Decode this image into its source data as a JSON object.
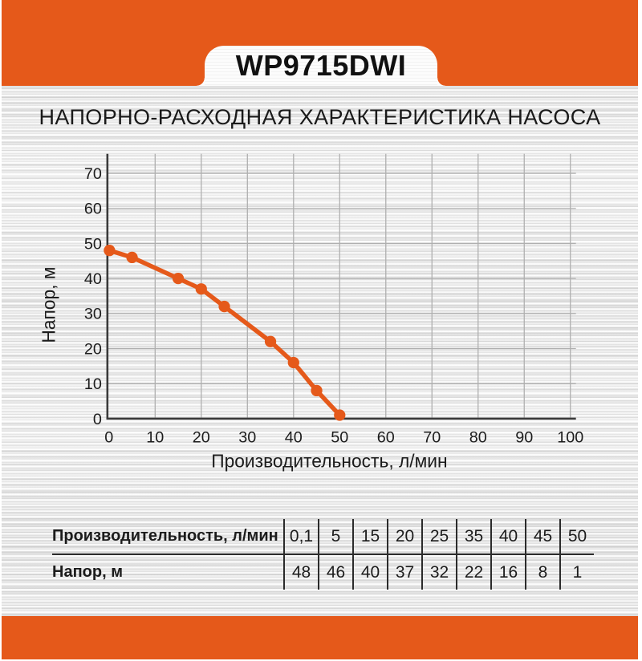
{
  "header": {
    "model": "WP9715DWI"
  },
  "heading": "НАПОРНО-РАСХОДНАЯ ХАРАКТЕРИСТИКА НАСОСА",
  "colors": {
    "accent": "#E5591A",
    "grid": "#AFAFAF",
    "axis": "#3A3A3A",
    "text": "#1C1C1C",
    "table_line": "#2B2B2B"
  },
  "chart_data": {
    "type": "line",
    "title": "",
    "x": [
      0.1,
      5,
      15,
      20,
      25,
      35,
      40,
      45,
      50
    ],
    "y": [
      48,
      46,
      40,
      37,
      32,
      22,
      16,
      8,
      1
    ],
    "xlabel": "Производительность, л/мин",
    "ylabel": "Напор, м",
    "xlim": [
      0,
      100
    ],
    "ylim": [
      0,
      70
    ],
    "xticks": [
      0,
      10,
      20,
      30,
      40,
      50,
      60,
      70,
      80,
      90,
      100
    ],
    "yticks": [
      0,
      10,
      20,
      30,
      40,
      50,
      60,
      70
    ],
    "grid": true,
    "legend": false,
    "marker": "circle",
    "series_color": "#E5591A"
  },
  "table": {
    "rows": [
      {
        "label": "Производительность, л/мин",
        "values": [
          "0,1",
          "5",
          "15",
          "20",
          "25",
          "35",
          "40",
          "45",
          "50"
        ]
      },
      {
        "label": "Напор, м",
        "values": [
          "48",
          "46",
          "40",
          "37",
          "32",
          "22",
          "16",
          "8",
          "1"
        ]
      }
    ]
  }
}
